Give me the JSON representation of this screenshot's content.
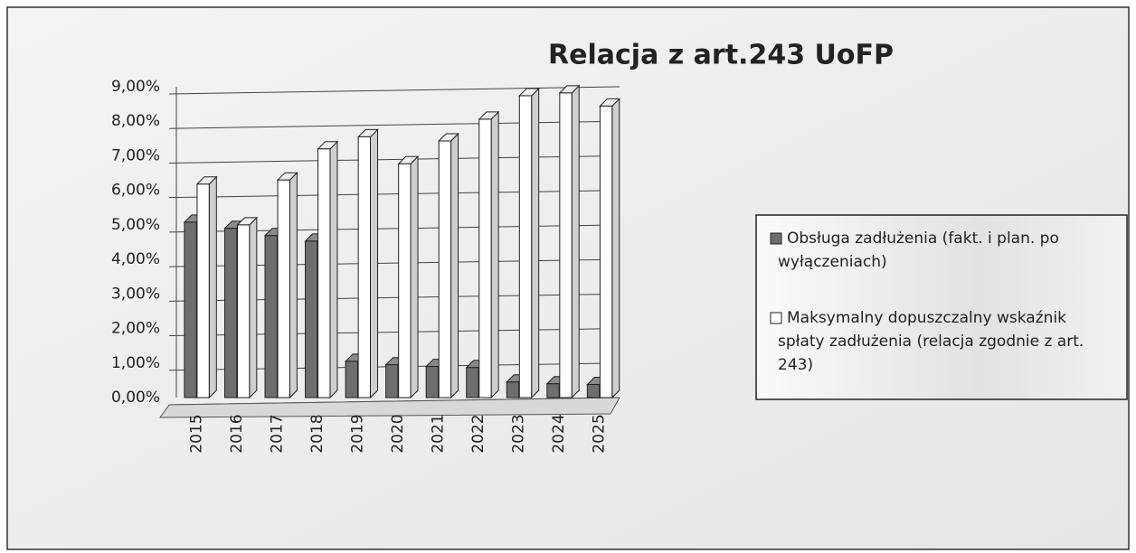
{
  "chart_data": {
    "type": "bar3d",
    "title": "Relacja z art.243 UoFP",
    "categories": [
      "2015",
      "2016",
      "2017",
      "2018",
      "2019",
      "2020",
      "2021",
      "2022",
      "2023",
      "2024",
      "2025"
    ],
    "series": [
      {
        "name": "Obsługa zadłużenia (fakt. i plan. po wyłączeniach)",
        "color": "#6e6e6e",
        "values": [
          5.08,
          4.9,
          4.69,
          4.53,
          1.05,
          0.95,
          0.9,
          0.87,
          0.45,
          0.4,
          0.38
        ]
      },
      {
        "name": "Maksymalny dopuszczalny wskaźnik spłaty zadłużenia (relacja zgodnie z art. 243)",
        "color": "#ffffff",
        "values": [
          6.18,
          5.0,
          6.3,
          7.2,
          7.55,
          6.77,
          7.43,
          8.06,
          8.74,
          8.82,
          8.44
        ]
      }
    ],
    "ylim": [
      0,
      9
    ],
    "yticks": [
      {
        "value": 0,
        "label": "0,00%"
      },
      {
        "value": 1,
        "label": "1,00%"
      },
      {
        "value": 2,
        "label": "2,00%"
      },
      {
        "value": 3,
        "label": "3,00%"
      },
      {
        "value": 4,
        "label": "4,00%"
      },
      {
        "value": 5,
        "label": "5,00%"
      },
      {
        "value": 6,
        "label": "6,00%"
      },
      {
        "value": 7,
        "label": "7,00%"
      },
      {
        "value": 8,
        "label": "8,00%"
      },
      {
        "value": 9,
        "label": "9,00%"
      }
    ],
    "grid": true,
    "legend": "right"
  }
}
